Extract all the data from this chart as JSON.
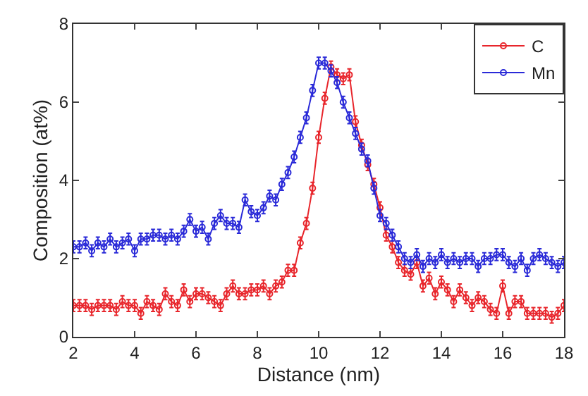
{
  "chart_data": {
    "type": "line",
    "xlabel": "Distance (nm)",
    "ylabel": "Composition (at%)",
    "x": [
      2.0,
      2.2,
      2.4,
      2.6,
      2.8,
      3.0,
      3.2,
      3.4,
      3.6,
      3.8,
      4.0,
      4.2,
      4.4,
      4.6,
      4.8,
      5.0,
      5.2,
      5.4,
      5.6,
      5.8,
      6.0,
      6.2,
      6.4,
      6.6,
      6.8,
      7.0,
      7.2,
      7.4,
      7.6,
      7.8,
      8.0,
      8.2,
      8.4,
      8.6,
      8.8,
      9.0,
      9.2,
      9.4,
      9.6,
      9.8,
      10.0,
      10.2,
      10.4,
      10.6,
      10.8,
      11.0,
      11.2,
      11.4,
      11.6,
      11.8,
      12.0,
      12.2,
      12.4,
      12.6,
      12.8,
      13.0,
      13.2,
      13.4,
      13.6,
      13.8,
      14.0,
      14.2,
      14.4,
      14.6,
      14.8,
      15.0,
      15.2,
      15.4,
      15.6,
      15.8,
      16.0,
      16.2,
      16.4,
      16.6,
      16.8,
      17.0,
      17.2,
      17.4,
      17.6,
      17.8,
      18.0
    ],
    "series": [
      {
        "name": "C",
        "color": "#e8262c",
        "values": [
          0.8,
          0.8,
          0.8,
          0.7,
          0.8,
          0.8,
          0.8,
          0.7,
          0.9,
          0.8,
          0.8,
          0.6,
          0.9,
          0.8,
          0.7,
          1.1,
          0.9,
          0.8,
          1.2,
          0.9,
          1.1,
          1.1,
          1.0,
          0.9,
          0.8,
          1.1,
          1.3,
          1.1,
          1.1,
          1.2,
          1.2,
          1.3,
          1.1,
          1.3,
          1.4,
          1.7,
          1.7,
          2.4,
          2.9,
          3.8,
          5.1,
          6.1,
          6.9,
          6.7,
          6.6,
          6.7,
          5.5,
          4.9,
          4.4,
          3.9,
          3.3,
          2.6,
          2.3,
          1.9,
          1.7,
          1.6,
          1.9,
          1.3,
          1.5,
          1.1,
          1.4,
          1.2,
          0.9,
          1.2,
          1.0,
          0.8,
          1.0,
          0.9,
          0.7,
          0.6,
          1.3,
          0.6,
          0.9,
          0.9,
          0.6,
          0.6,
          0.6,
          0.6,
          0.5,
          0.6,
          0.8
        ],
        "errors": [
          0.15,
          0.15,
          0.15,
          0.15,
          0.15,
          0.15,
          0.15,
          0.15,
          0.15,
          0.15,
          0.15,
          0.15,
          0.15,
          0.15,
          0.15,
          0.15,
          0.15,
          0.15,
          0.15,
          0.15,
          0.15,
          0.15,
          0.15,
          0.15,
          0.15,
          0.15,
          0.15,
          0.15,
          0.15,
          0.15,
          0.15,
          0.15,
          0.15,
          0.15,
          0.15,
          0.15,
          0.15,
          0.15,
          0.15,
          0.15,
          0.15,
          0.15,
          0.15,
          0.15,
          0.15,
          0.15,
          0.15,
          0.15,
          0.15,
          0.15,
          0.15,
          0.15,
          0.15,
          0.15,
          0.15,
          0.15,
          0.15,
          0.15,
          0.15,
          0.15,
          0.15,
          0.15,
          0.15,
          0.15,
          0.15,
          0.15,
          0.15,
          0.15,
          0.15,
          0.15,
          0.15,
          0.15,
          0.15,
          0.15,
          0.15,
          0.15,
          0.15,
          0.15,
          0.15,
          0.15,
          0.15
        ]
      },
      {
        "name": "Mn",
        "color": "#2a2ad8",
        "values": [
          2.3,
          2.3,
          2.4,
          2.2,
          2.4,
          2.3,
          2.5,
          2.3,
          2.4,
          2.5,
          2.2,
          2.5,
          2.5,
          2.6,
          2.6,
          2.5,
          2.6,
          2.5,
          2.7,
          3.0,
          2.7,
          2.8,
          2.5,
          2.9,
          3.1,
          2.9,
          2.9,
          2.8,
          3.5,
          3.2,
          3.1,
          3.3,
          3.6,
          3.5,
          3.9,
          4.2,
          4.6,
          5.1,
          5.6,
          6.3,
          7.0,
          7.0,
          6.8,
          6.5,
          6.0,
          5.6,
          5.2,
          4.8,
          4.5,
          3.8,
          3.1,
          2.9,
          2.6,
          2.3,
          2.0,
          1.9,
          2.1,
          1.8,
          2.0,
          1.9,
          2.1,
          1.9,
          2.0,
          1.9,
          2.0,
          2.0,
          1.8,
          2.0,
          2.0,
          2.1,
          2.1,
          1.9,
          1.8,
          2.0,
          1.7,
          2.0,
          2.1,
          2.0,
          1.9,
          1.8,
          1.9
        ],
        "errors": [
          0.15,
          0.15,
          0.15,
          0.15,
          0.15,
          0.15,
          0.15,
          0.15,
          0.15,
          0.15,
          0.15,
          0.15,
          0.15,
          0.15,
          0.15,
          0.15,
          0.15,
          0.15,
          0.15,
          0.15,
          0.15,
          0.15,
          0.15,
          0.15,
          0.15,
          0.15,
          0.15,
          0.15,
          0.15,
          0.15,
          0.15,
          0.15,
          0.15,
          0.15,
          0.15,
          0.15,
          0.15,
          0.15,
          0.15,
          0.15,
          0.15,
          0.15,
          0.15,
          0.15,
          0.15,
          0.15,
          0.15,
          0.15,
          0.15,
          0.15,
          0.15,
          0.15,
          0.15,
          0.15,
          0.15,
          0.15,
          0.15,
          0.15,
          0.15,
          0.15,
          0.15,
          0.15,
          0.15,
          0.15,
          0.15,
          0.15,
          0.15,
          0.15,
          0.15,
          0.15,
          0.15,
          0.15,
          0.15,
          0.15,
          0.15,
          0.15,
          0.15,
          0.15,
          0.15,
          0.15,
          0.15
        ]
      }
    ],
    "xlim": [
      2,
      18
    ],
    "xticks": [
      2,
      4,
      6,
      8,
      10,
      12,
      14,
      16,
      18
    ],
    "ylim": [
      0,
      8
    ],
    "yticks": [
      0,
      2,
      4,
      6,
      8
    ],
    "marker": "circle",
    "line_style": "solid",
    "grid": false,
    "legend": "top right"
  }
}
